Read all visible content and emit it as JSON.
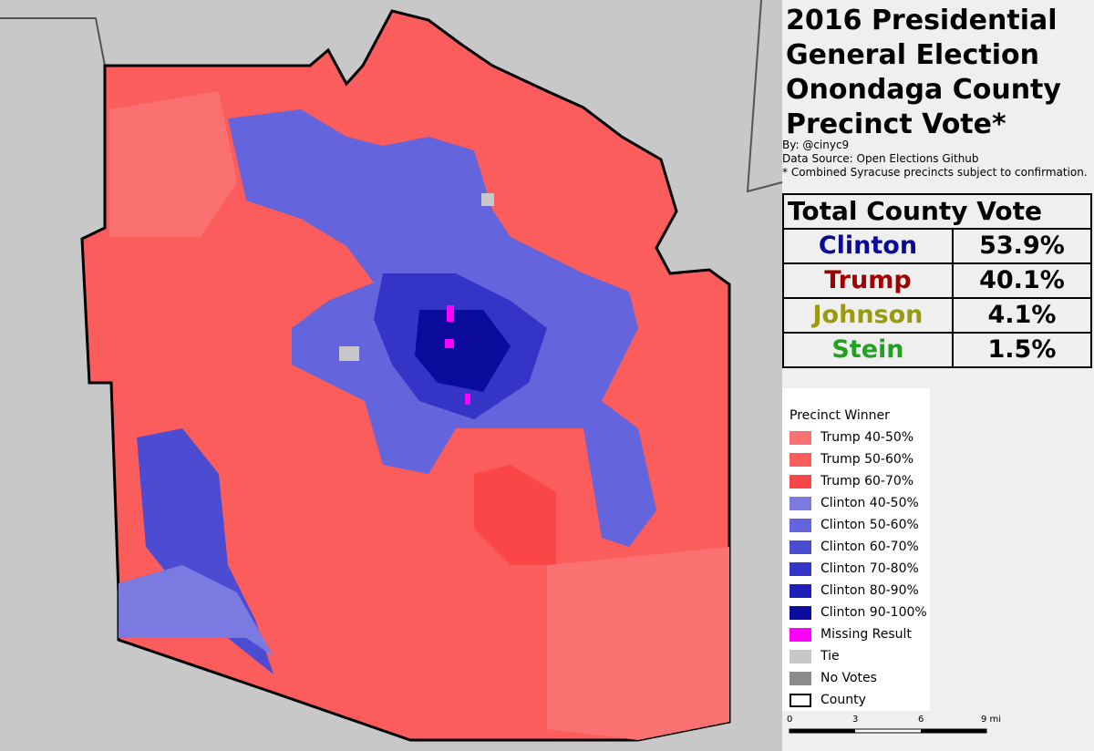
{
  "header": {
    "title": [
      "2016 Presidential",
      "General Election",
      "Onondaga County",
      "Precinct Vote*"
    ],
    "credits": [
      "By: @cinyc9",
      "Data Source: Open Elections Github",
      "* Combined Syracuse precincts subject to confirmation."
    ]
  },
  "results": {
    "title": "Total County Vote",
    "rows": [
      {
        "name": "Clinton",
        "share": "53.9%",
        "color": "#0a0a96"
      },
      {
        "name": "Trump",
        "share": "40.1%",
        "color": "#a00000"
      },
      {
        "name": "Johnson",
        "share": "4.1%",
        "color": "#9a9a10"
      },
      {
        "name": "Stein",
        "share": "1.5%",
        "color": "#22a022"
      }
    ]
  },
  "legend": {
    "title": "Precinct Winner",
    "items": [
      {
        "label": "Trump 40-50%",
        "color": "#fb7070"
      },
      {
        "label": "Trump 50-60%",
        "color": "#fb5c5c"
      },
      {
        "label": "Trump 60-70%",
        "color": "#fa4646"
      },
      {
        "label": "Clinton 40-50%",
        "color": "#7a7ae0"
      },
      {
        "label": "Clinton 50-60%",
        "color": "#6464dc"
      },
      {
        "label": "Clinton 60-70%",
        "color": "#4c4cd2"
      },
      {
        "label": "Clinton 70-80%",
        "color": "#3434c6"
      },
      {
        "label": "Clinton 80-90%",
        "color": "#1e1eb8"
      },
      {
        "label": "Clinton 90-100%",
        "color": "#0c0c9c"
      },
      {
        "label": "Missing Result",
        "color": "#ff00ff"
      },
      {
        "label": "Tie",
        "color": "#c8c8c8"
      },
      {
        "label": "No Votes",
        "color": "#8c8c8c"
      },
      {
        "label": "County",
        "color": "#ffffff",
        "outline": true
      }
    ]
  },
  "scale": {
    "labels": [
      "0",
      "3",
      "6",
      "9 mi"
    ]
  }
}
